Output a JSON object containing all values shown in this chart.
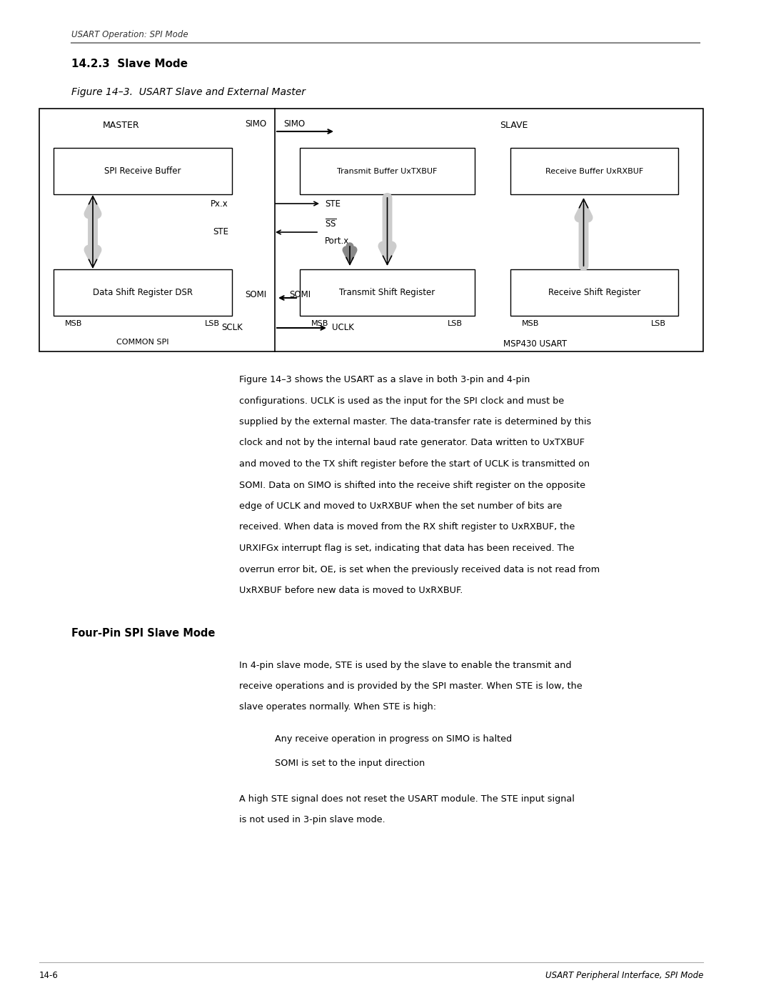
{
  "bg_color": "#ffffff",
  "page_width": 10.8,
  "page_height": 13.97,
  "header_text": "USART Operation: SPI Mode",
  "section_title": "14.2.3  Slave Mode",
  "figure_title": "Figure 14–3.  USART Slave and External Master",
  "body_text_lines": [
    "Figure 14–3 shows the USART as a slave in both 3-pin and 4-pin",
    "configurations. UCLK is used as the input for the SPI clock and must be",
    "supplied by the external master. The data-transfer rate is determined by this",
    "clock and not by the internal baud rate generator. Data written to UxTXBUF",
    "and moved to the TX shift register before the start of UCLK is transmitted on",
    "SOMI. Data on SIMO is shifted into the receive shift register on the opposite",
    "edge of UCLK and moved to UxRXBUF when the set number of bits are",
    "received. When data is moved from the RX shift register to UxRXBUF, the",
    "URXIFGx interrupt flag is set, indicating that data has been received. The",
    "overrun error bit, OE, is set when the previously received data is not read from",
    "UxRXBUF before new data is moved to UxRXBUF."
  ],
  "section2_title": "Four-Pin SPI Slave Mode",
  "body_text2_lines": [
    "In 4-pin slave mode, STE is used by the slave to enable the transmit and",
    "receive operations and is provided by the SPI master. When STE is low, the",
    "slave operates normally. When STE is high:"
  ],
  "bullet1": "Any receive operation in progress on SIMO is halted",
  "bullet2": "SOMI is set to the input direction",
  "body_text3_lines": [
    "A high STE signal does not reset the USART module. The STE input signal",
    "is not used in 3-pin slave mode."
  ],
  "footer_left": "14-6",
  "footer_right": "USART Peripheral Interface, SPI Mode"
}
